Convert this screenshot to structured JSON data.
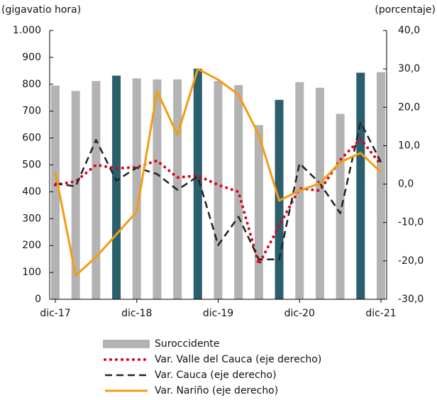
{
  "chart_data": {
    "type": "bar-line",
    "y_label": "(gigavatio  hora)",
    "y2_label": "(porcentaje)",
    "categories": [
      "dic-17",
      null,
      null,
      null,
      "dic-18",
      null,
      null,
      null,
      "dic-19",
      null,
      null,
      null,
      "dic-20",
      null,
      null,
      null,
      "dic-21"
    ],
    "ylim": [
      0,
      1000
    ],
    "yticks": [
      0,
      100,
      200,
      300,
      400,
      500,
      600,
      700,
      800,
      900,
      {
        "value": 1000,
        "label": "1.000"
      }
    ],
    "y2lim": [
      -30,
      40
    ],
    "y2ticks": [
      {
        "value": -30,
        "label": "-30,0"
      },
      {
        "value": -20,
        "label": "-20,0"
      },
      {
        "value": -10,
        "label": "-10,0"
      },
      {
        "value": 0,
        "label": "0,0"
      },
      {
        "value": 10,
        "label": "10,0"
      },
      {
        "value": 20,
        "label": "20,0"
      },
      {
        "value": 30,
        "label": "30,0"
      },
      {
        "value": 40,
        "label": "40,0"
      }
    ],
    "series": [
      {
        "name": "Suroccidente",
        "type": "bar",
        "color": "#b3b3b3",
        "colors": [
          "#b3b3b3",
          "#b3b3b3",
          "#b3b3b3",
          "#2b5f6e",
          "#b3b3b3",
          "#b3b3b3",
          "#b3b3b3",
          "#2b5f6e",
          "#b3b3b3",
          "#b3b3b3",
          "#b3b3b3",
          "#2b5f6e",
          "#b3b3b3",
          "#b3b3b3",
          "#b3b3b3",
          "#2b5f6e",
          "#b3b3b3"
        ],
        "values": [
          795,
          775,
          812,
          832,
          822,
          818,
          818,
          858,
          812,
          797,
          648,
          742,
          808,
          787,
          690,
          843,
          845
        ]
      },
      {
        "name": "Var. Valle del Cauca (eje derecho)",
        "type": "dotted",
        "axis": "y2",
        "color": "#e0001b",
        "values": [
          -0.2,
          0.7,
          5,
          4.1,
          4.4,
          6.1,
          1.7,
          2.2,
          -0.2,
          -2,
          -20.9,
          -10.9,
          -1.1,
          -1.7,
          6.3,
          11.8,
          5
        ]
      },
      {
        "name": "Var. Cauca (eje derecho)",
        "type": "dashed",
        "axis": "y2",
        "color": "#222222",
        "values": [
          0.2,
          -0.6,
          11.5,
          0.9,
          4.3,
          2.6,
          -1.5,
          2,
          -15.9,
          -8.5,
          -19.6,
          -19.6,
          5.4,
          0.2,
          -7.6,
          16.1,
          5.7
        ]
      },
      {
        "name": "Var. Nariño (eje derecho)",
        "type": "solid",
        "axis": "y2",
        "color": "#f39c12",
        "values": [
          3.1,
          -23.8,
          -19,
          -13.1,
          -7.2,
          24.2,
          12.8,
          30,
          27.2,
          23.3,
          12.8,
          -4.3,
          -1.7,
          0.2,
          5.7,
          8.1,
          3.1
        ]
      }
    ]
  }
}
